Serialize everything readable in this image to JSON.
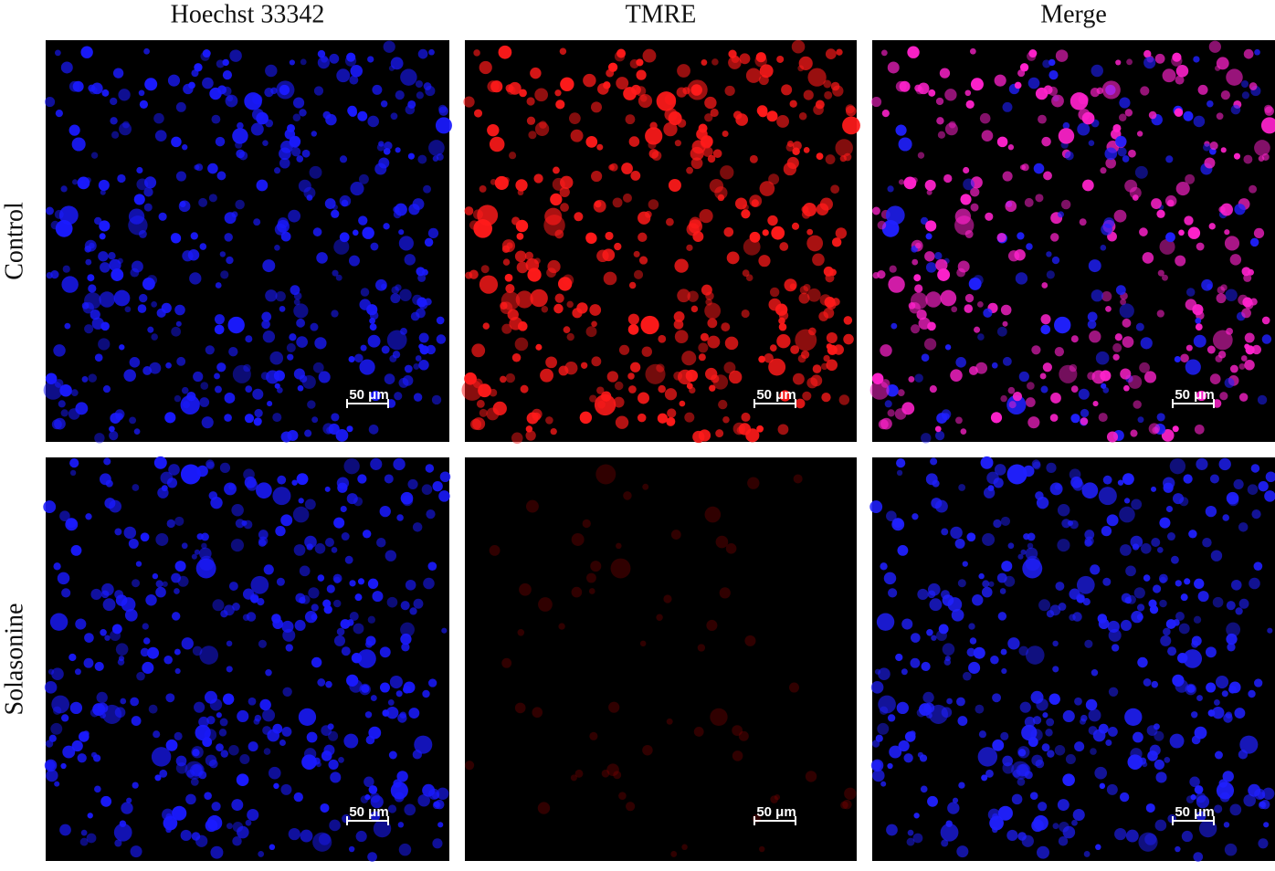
{
  "columns": [
    "Hoechst 33342",
    "TMRE",
    "Merge"
  ],
  "rows": [
    "Control",
    "Solasonine"
  ],
  "panels": [
    [
      {
        "scale_bar": "50 μm"
      },
      {
        "scale_bar": "50 μm"
      },
      {
        "scale_bar": "50 μm"
      }
    ],
    [
      {
        "scale_bar": "50 μm"
      },
      {
        "scale_bar": "50 μm"
      },
      {
        "scale_bar": "50 μm"
      }
    ]
  ]
}
